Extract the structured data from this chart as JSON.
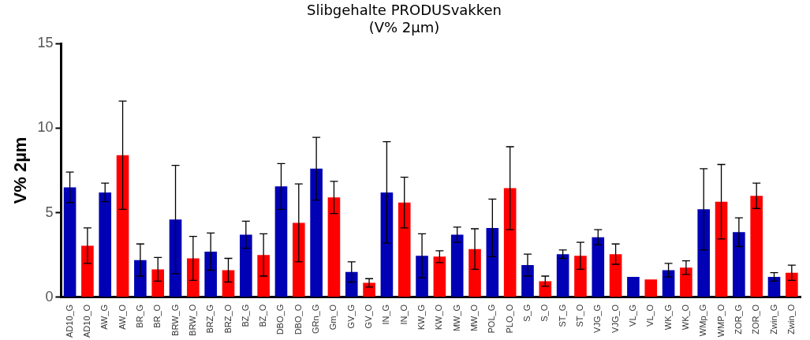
{
  "chart_data": {
    "type": "bar",
    "title": "Slibgehalte PRODUSvakken",
    "subtitle": "(V% 2µm)",
    "ylabel": "V% 2µm",
    "categories": [
      "AD10_G",
      "AD10_O",
      "AW_G",
      "AW_O",
      "BR_G",
      "BR_O",
      "BRW_G",
      "BRW_O",
      "BRZ_G",
      "BRZ_O",
      "BZ_G",
      "BZ_O",
      "DBO_G",
      "DBO_O",
      "GRn_G",
      "Gm_O",
      "GV_G",
      "GV_O",
      "IN_G",
      "IN_O",
      "KW_G",
      "KW_O",
      "MW_G",
      "MW_O",
      "POL_G",
      "PLO_O",
      "S_G",
      "S_O",
      "ST_G",
      "ST_O",
      "VJG_G",
      "VJG_O",
      "VL_G",
      "VL_O",
      "WK_G",
      "WK_O",
      "WMp_G",
      "WMP_O",
      "ZOR_G",
      "ZOR_O",
      "Zwin_G",
      "Zwin_O"
    ],
    "values": [
      6.5,
      3.05,
      6.2,
      8.4,
      2.2,
      1.65,
      4.6,
      2.3,
      2.7,
      1.6,
      3.7,
      2.5,
      6.55,
      4.4,
      7.6,
      5.9,
      1.5,
      0.85,
      6.2,
      5.6,
      2.45,
      2.4,
      3.7,
      2.85,
      4.1,
      6.45,
      1.9,
      0.95,
      2.55,
      2.45,
      3.55,
      2.55,
      1.2,
      1.05,
      1.6,
      1.75,
      5.2,
      5.65,
      3.85,
      6.0,
      1.2,
      1.45
    ],
    "errors": [
      0.9,
      1.05,
      0.55,
      3.2,
      0.95,
      0.7,
      3.2,
      1.3,
      1.1,
      0.7,
      0.8,
      1.25,
      1.35,
      2.3,
      1.85,
      0.95,
      0.6,
      0.25,
      3.0,
      1.5,
      1.3,
      0.35,
      0.45,
      1.2,
      1.7,
      2.45,
      0.65,
      0.3,
      0.25,
      0.8,
      0.45,
      0.6,
      null,
      null,
      0.4,
      0.4,
      2.4,
      2.2,
      0.85,
      0.75,
      0.25,
      0.45
    ],
    "colors": [
      "#0000b4",
      "#ff0000",
      "#0000b4",
      "#ff0000",
      "#0000b4",
      "#ff0000",
      "#0000b4",
      "#ff0000",
      "#0000b4",
      "#ff0000",
      "#0000b4",
      "#ff0000",
      "#0000b4",
      "#ff0000",
      "#0000b4",
      "#ff0000",
      "#0000b4",
      "#ff0000",
      "#0000b4",
      "#ff0000",
      "#0000b4",
      "#ff0000",
      "#0000b4",
      "#ff0000",
      "#0000b4",
      "#ff0000",
      "#0000b4",
      "#ff0000",
      "#0000b4",
      "#ff0000",
      "#0000b4",
      "#ff0000",
      "#0000b4",
      "#ff0000",
      "#0000b4",
      "#ff0000",
      "#0000b4",
      "#ff0000",
      "#0000b4",
      "#ff0000",
      "#0000b4",
      "#ff0000"
    ],
    "ylim": [
      0,
      15
    ],
    "yticks": [
      0,
      5,
      10,
      15
    ],
    "grid": false,
    "legend": false
  }
}
